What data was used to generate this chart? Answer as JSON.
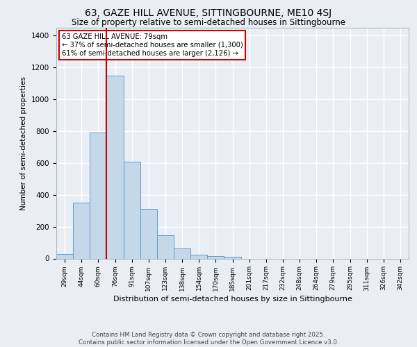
{
  "title_line1": "63, GAZE HILL AVENUE, SITTINGBOURNE, ME10 4SJ",
  "title_line2": "Size of property relative to semi-detached houses in Sittingbourne",
  "xlabel": "Distribution of semi-detached houses by size in Sittingbourne",
  "ylabel": "Number of semi-detached properties",
  "categories": [
    "29sqm",
    "44sqm",
    "60sqm",
    "76sqm",
    "91sqm",
    "107sqm",
    "123sqm",
    "138sqm",
    "154sqm",
    "170sqm",
    "185sqm",
    "201sqm",
    "217sqm",
    "232sqm",
    "248sqm",
    "264sqm",
    "279sqm",
    "295sqm",
    "311sqm",
    "326sqm",
    "342sqm"
  ],
  "values": [
    30,
    350,
    790,
    1150,
    610,
    310,
    145,
    65,
    25,
    15,
    10,
    0,
    0,
    0,
    0,
    0,
    0,
    0,
    0,
    0,
    0
  ],
  "bar_color": "#c5d8e8",
  "bar_edge_color": "#5b9bd5",
  "red_line_x": 3,
  "red_line_color": "#cc0000",
  "annotation_title": "63 GAZE HILL AVENUE: 79sqm",
  "annotation_line1": "← 37% of semi-detached houses are smaller (1,300)",
  "annotation_line2": "61% of semi-detached houses are larger (2,126) →",
  "annotation_box_color": "#cc0000",
  "ylim": [
    0,
    1450
  ],
  "yticks": [
    0,
    200,
    400,
    600,
    800,
    1000,
    1200,
    1400
  ],
  "footer": "Contains HM Land Registry data © Crown copyright and database right 2025.\nContains public sector information licensed under the Open Government Licence v3.0.",
  "background_color": "#e8eef4",
  "plot_bg_color": "#e8eef4",
  "grid_color": "#ffffff"
}
